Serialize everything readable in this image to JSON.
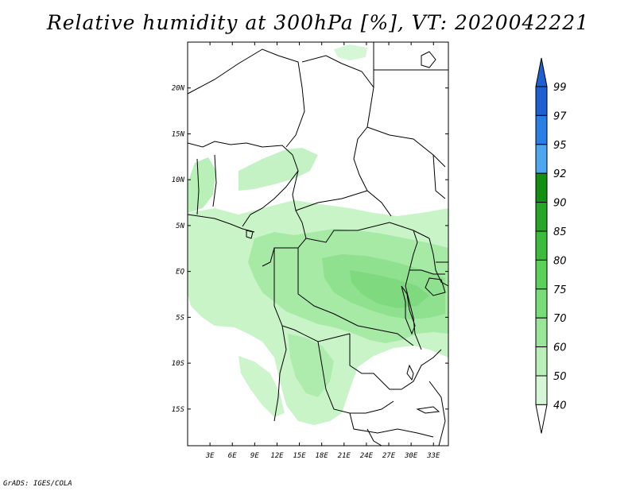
{
  "title": "Relative humidity at 300hPa [%], VT: 2020042221",
  "credit": "GrADS: IGES/COLA",
  "map": {
    "lon_range": [
      0,
      35
    ],
    "lat_range": [
      -19,
      25
    ],
    "lon_ticks": [
      "3E",
      "6E",
      "9E",
      "12E",
      "15E",
      "18E",
      "21E",
      "24E",
      "27E",
      "30E",
      "33E"
    ],
    "lat_ticks": [
      "20N",
      "15N",
      "10N",
      "5N",
      "EQ",
      "5S",
      "10S",
      "15S"
    ]
  },
  "colorbar": {
    "levels": [
      "99",
      "97",
      "95",
      "92",
      "90",
      "85",
      "80",
      "75",
      "70",
      "60",
      "50",
      "40"
    ],
    "colors": [
      "#1e5fd1",
      "#2a7fe6",
      "#4da6f0",
      "#129012",
      "#26a626",
      "#3cbc3c",
      "#5ad25a",
      "#78dc78",
      "#99e699",
      "#b8f0b8",
      "#d5f7d5",
      "#ecfcec"
    ],
    "top_arrow_color": "#1e5fd1",
    "bottom_arrow_color": "#ffffff"
  }
}
